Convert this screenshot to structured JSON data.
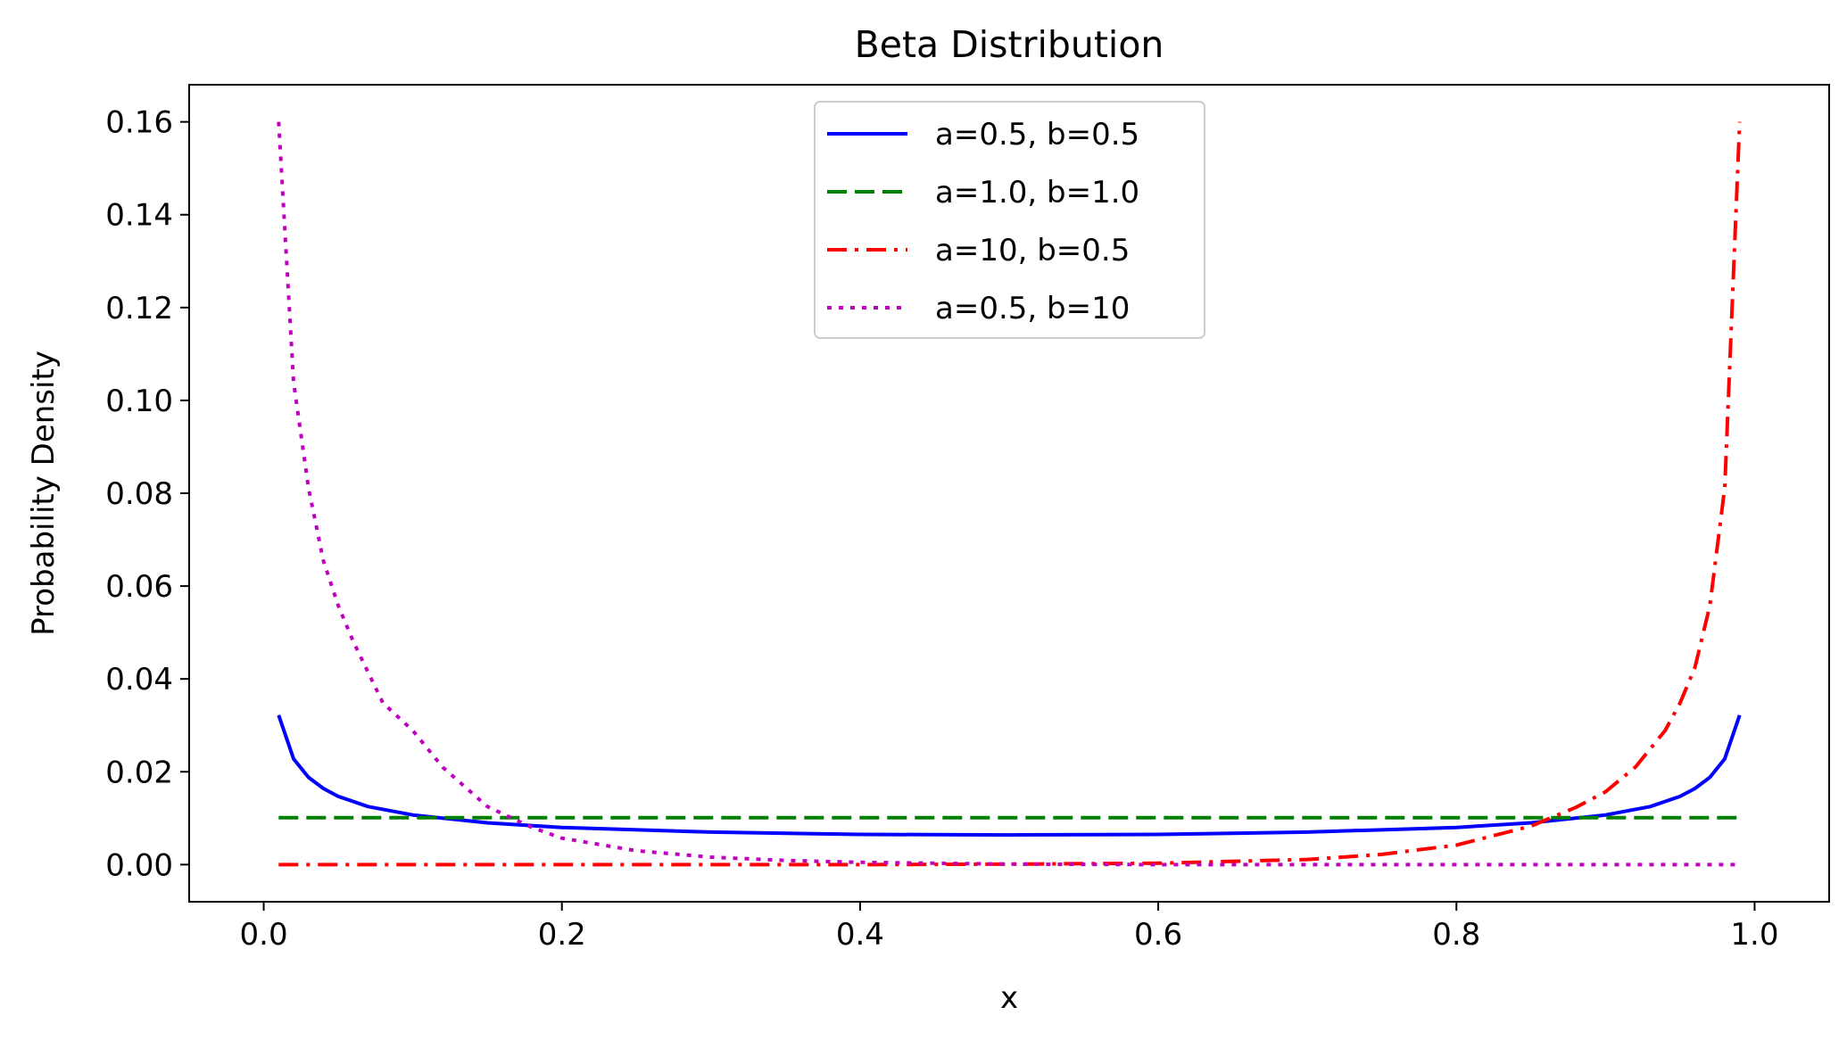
{
  "chart_data": {
    "type": "line",
    "title": "Beta Distribution",
    "xlabel": "x",
    "ylabel": "Probability Density",
    "xlim": [
      -0.05,
      1.05
    ],
    "ylim": [
      -0.008,
      0.168
    ],
    "xticks": [
      0.0,
      0.2,
      0.4,
      0.6,
      0.8,
      1.0
    ],
    "xtick_labels": [
      "0.0",
      "0.2",
      "0.4",
      "0.6",
      "0.8",
      "1.0"
    ],
    "yticks": [
      0.0,
      0.02,
      0.04,
      0.06,
      0.08,
      0.1,
      0.12,
      0.14,
      0.16
    ],
    "ytick_labels": [
      "0.00",
      "0.02",
      "0.04",
      "0.06",
      "0.08",
      "0.10",
      "0.12",
      "0.14",
      "0.16"
    ],
    "grid": false,
    "legend_position": "top-center",
    "series": [
      {
        "name": "a=0.5, b=0.5",
        "color": "#0000ff",
        "style": "solid",
        "x": [
          0.01,
          0.02,
          0.03,
          0.04,
          0.05,
          0.07,
          0.1,
          0.15,
          0.2,
          0.3,
          0.4,
          0.5,
          0.6,
          0.7,
          0.8,
          0.85,
          0.9,
          0.93,
          0.95,
          0.96,
          0.97,
          0.98,
          0.99
        ],
        "values": [
          0.0322,
          0.0228,
          0.0188,
          0.0164,
          0.0147,
          0.0125,
          0.0107,
          0.009,
          0.008,
          0.007,
          0.0065,
          0.0064,
          0.0065,
          0.007,
          0.008,
          0.009,
          0.0107,
          0.0125,
          0.0147,
          0.0164,
          0.0188,
          0.0228,
          0.0322
        ]
      },
      {
        "name": "a=1.0, b=1.0",
        "color": "#008000",
        "style": "dashed",
        "x": [
          0.01,
          0.99
        ],
        "values": [
          0.0101,
          0.0101
        ]
      },
      {
        "name": "a=10, b=0.5",
        "color": "#ff0000",
        "style": "dashdot",
        "x": [
          0.01,
          0.2,
          0.4,
          0.5,
          0.6,
          0.7,
          0.75,
          0.8,
          0.85,
          0.88,
          0.9,
          0.92,
          0.94,
          0.95,
          0.96,
          0.97,
          0.98,
          0.99
        ],
        "values": [
          0.0,
          0.0,
          0.0,
          0.0001,
          0.0003,
          0.0011,
          0.0022,
          0.0042,
          0.0083,
          0.0123,
          0.0157,
          0.021,
          0.0289,
          0.0348,
          0.0425,
          0.0558,
          0.0812,
          0.16
        ]
      },
      {
        "name": "a=0.5, b=10",
        "color": "#bf00bf",
        "style": "dotted",
        "x": [
          0.01,
          0.02,
          0.03,
          0.04,
          0.05,
          0.06,
          0.08,
          0.1,
          0.12,
          0.15,
          0.18,
          0.2,
          0.25,
          0.3,
          0.35,
          0.4,
          0.5,
          0.6,
          0.8,
          0.99
        ],
        "values": [
          0.16,
          0.104,
          0.0812,
          0.0655,
          0.0558,
          0.0481,
          0.0348,
          0.0289,
          0.021,
          0.0125,
          0.008,
          0.0057,
          0.003,
          0.0016,
          0.0009,
          0.0005,
          0.0001,
          0.0,
          0.0,
          0.0
        ]
      }
    ]
  }
}
